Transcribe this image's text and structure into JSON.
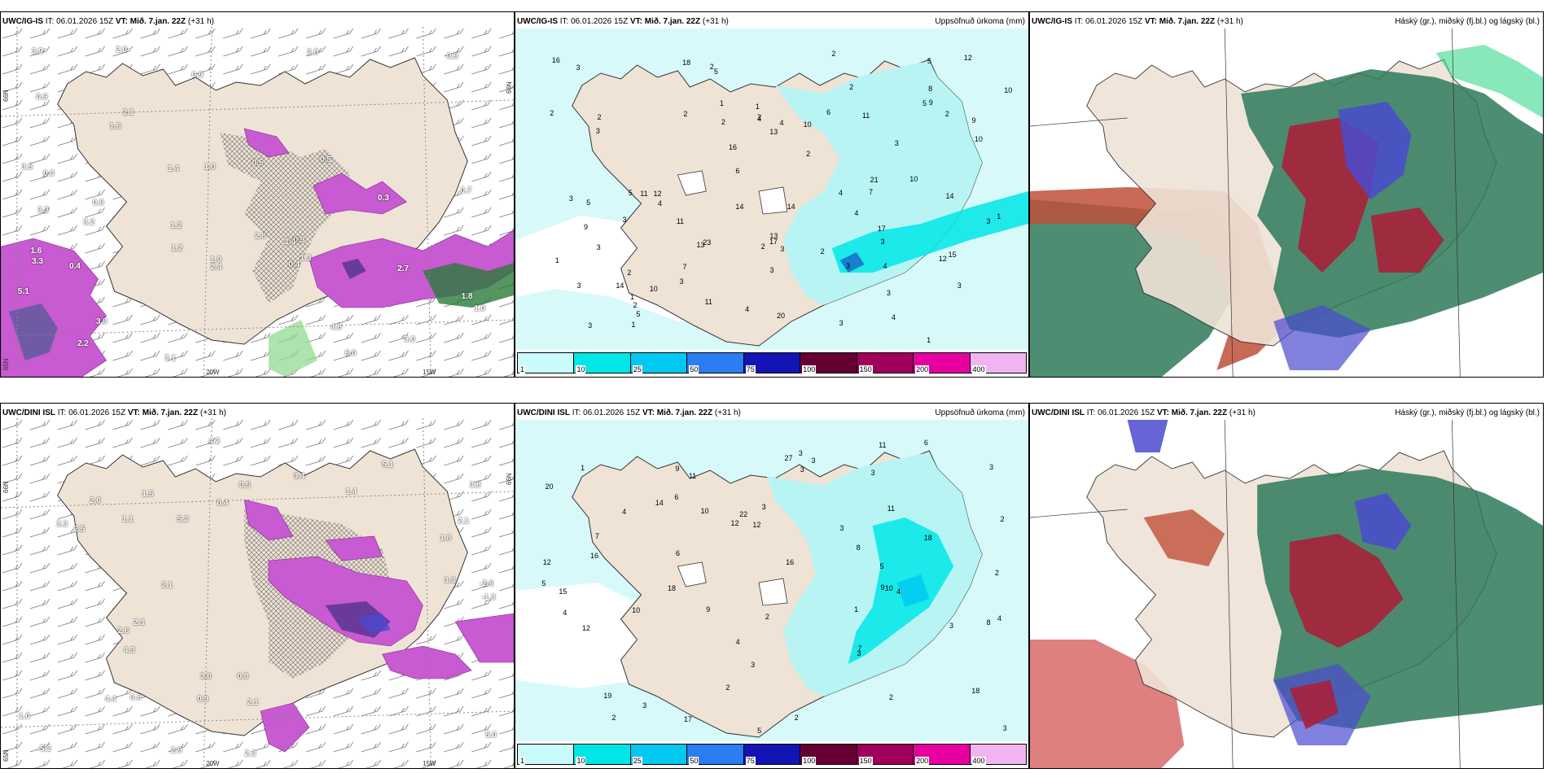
{
  "rows": [
    {
      "model": "UWC/IG-IS",
      "it_label": "IT:",
      "it": "06.01.2026 15Z",
      "vt_label": "VT:",
      "vt": "Mið. 7.jan. 22Z",
      "lead": "(+31 h)",
      "panels": [
        {
          "id": "wind",
          "right_title": "",
          "axis_labels": {
            "n66_left": "66N",
            "n66_right": "66N",
            "n65_left": "65N",
            "w20": "20W",
            "w15": "15W"
          },
          "values": [
            "1.3",
            "0.3",
            "0.9",
            "0.4",
            "1.2",
            "1.0",
            "0.3",
            "0.9",
            "1.4",
            "0.5",
            "3.9",
            "3.5",
            "0.4",
            "1.9",
            "2.7",
            "1.8",
            "0.5",
            "3.3",
            "3.1",
            "1.6",
            "1.6",
            "1.4",
            "2.4",
            "2.2",
            "3.9",
            "2.8",
            "4.8",
            "3.3",
            "3.2",
            "1.0",
            "0.7",
            "1.2",
            "0.9",
            "0.9",
            "2.8",
            "2.0",
            "6.0",
            "5.1",
            "3.0",
            "2.1",
            "0.9"
          ]
        },
        {
          "id": "precip",
          "right_title": "Uppsöfnuð úrkoma (mm)",
          "values": [
            "5",
            "1",
            "1",
            "4",
            "3",
            "1",
            "5",
            "4",
            "3",
            "4",
            "2",
            "1",
            "2",
            "2",
            "2",
            "4",
            "2",
            "3",
            "2",
            "1",
            "2",
            "4",
            "3",
            "3",
            "4",
            "3",
            "3",
            "10",
            "5",
            "5",
            "1",
            "2",
            "3",
            "3",
            "13",
            "14",
            "3",
            "2",
            "1",
            "3",
            "2",
            "2",
            "4",
            "2",
            "12",
            "13",
            "3",
            "3",
            "11",
            "4",
            "3",
            "3",
            "2",
            "3",
            "17",
            "6",
            "7",
            "3",
            "5",
            "18",
            "17",
            "10",
            "10",
            "14",
            "2",
            "8",
            "13",
            "16",
            "16",
            "12",
            "6",
            "7",
            "10",
            "11",
            "15",
            "21",
            "14",
            "14",
            "9",
            "5",
            "11",
            "12",
            "9",
            "9",
            "10",
            "11",
            "23",
            "20"
          ],
          "colorbar": {
            "levels": [
              "1",
              "10",
              "25",
              "50",
              "75",
              "100",
              "150",
              "200",
              "400"
            ],
            "colors": [
              "#c9fbfb",
              "#00e6e6",
              "#00c8f0",
              "#2b7df2",
              "#1414b4",
              "#660033",
              "#a0005a",
              "#e600a0",
              "#f0b4f0"
            ]
          }
        },
        {
          "id": "cloud",
          "right_title": "Háský (gr.), miðský (fj.bl.) og lágský (bl.)",
          "values": []
        }
      ]
    },
    {
      "model": "UWC/DINI ISL",
      "it_label": "IT:",
      "it": "06.01.2026 15Z",
      "vt_label": "VT:",
      "vt": "Mið. 7.jan. 22Z",
      "lead": "(+31 h)",
      "panels": [
        {
          "id": "wind",
          "right_title": "",
          "axis_labels": {
            "n66_left": "66N",
            "n66_right": "66N",
            "n65_left": "65N",
            "w20": "20W",
            "w15": "15W"
          },
          "values": [
            "0.8",
            "1.1",
            "1.4",
            "1.8",
            "0.8",
            "1.0",
            "0.4",
            "0.5",
            "2.1",
            "3.6",
            "2.3",
            "2.1",
            "2.5",
            "3.3",
            "2.6",
            "3.8",
            "5.1",
            "2.1",
            "4.3",
            "4.4",
            "3.3",
            "1.5",
            "2.3",
            "5.2",
            "4.2",
            "5.0",
            "3.4",
            "-1.3",
            "-5.2",
            "2.6",
            "2.9",
            "-2.6",
            "0.9"
          ]
        },
        {
          "id": "precip",
          "right_title": "Uppsöfnuð úrkoma (mm)",
          "values": [
            "4",
            "3",
            "3",
            "4",
            "1",
            "3",
            "3",
            "3",
            "4",
            "3",
            "2",
            "2",
            "2",
            "2",
            "2",
            "2",
            "2",
            "1",
            "3",
            "3",
            "4",
            "3",
            "4",
            "6",
            "5",
            "7",
            "15",
            "5",
            "18",
            "12",
            "22",
            "17",
            "16",
            "12",
            "16",
            "18",
            "19",
            "20",
            "27",
            "18",
            "9",
            "8",
            "6",
            "5",
            "3",
            "3",
            "3",
            "8",
            "7",
            "11",
            "11",
            "12",
            "10",
            "12",
            "9",
            "14",
            "9",
            "10",
            "10",
            "11",
            "6"
          ],
          "colorbar": {
            "levels": [
              "1",
              "10",
              "25",
              "50",
              "75",
              "100",
              "150",
              "200",
              "400"
            ],
            "colors": [
              "#c9fbfb",
              "#00e6e6",
              "#00c8f0",
              "#2b7df2",
              "#1414b4",
              "#660033",
              "#a0005a",
              "#e600a0",
              "#f0b4f0"
            ]
          }
        },
        {
          "id": "cloud",
          "right_title": "Háský (gr.), miðský (fj.bl.) og lágský (bl.)",
          "values": []
        }
      ]
    }
  ]
}
